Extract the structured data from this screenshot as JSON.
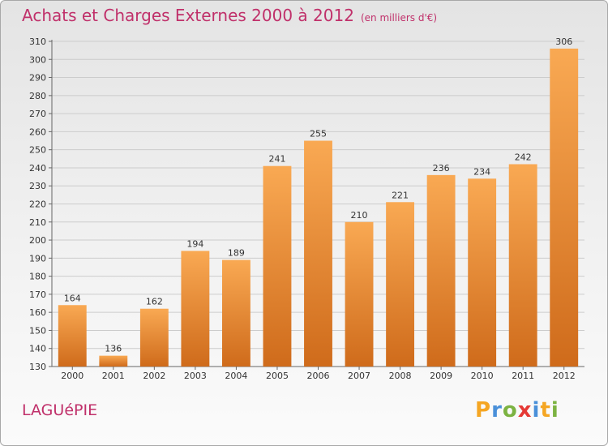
{
  "title": "Achats et Charges Externes 2000 à 2012",
  "subtitle": "(en milliers d'€)",
  "commune": "LAGUéPIE",
  "logo": {
    "letters": [
      "P",
      "r",
      "o",
      "x",
      "i",
      "t",
      "i"
    ],
    "colors": [
      "#f5a623",
      "#4a90d9",
      "#7cb342",
      "#e53935",
      "#4a90d9",
      "#f5a623",
      "#7cb342"
    ]
  },
  "colors": {
    "bar_top": "#f9a953",
    "bar_bottom": "#cf6b1b",
    "title": "#c0306a",
    "grid": "#cccccc"
  },
  "chart_data": {
    "type": "bar",
    "title": "Achats et Charges Externes 2000 à 2012",
    "categories": [
      "2000",
      "2001",
      "2002",
      "2003",
      "2004",
      "2005",
      "2006",
      "2007",
      "2008",
      "2009",
      "2010",
      "2011",
      "2012"
    ],
    "values": [
      164,
      136,
      162,
      194,
      189,
      241,
      255,
      210,
      221,
      236,
      234,
      242,
      306
    ],
    "ylim": [
      130,
      310
    ],
    "yticks": [
      130,
      140,
      150,
      160,
      170,
      180,
      190,
      200,
      210,
      220,
      230,
      240,
      250,
      260,
      270,
      280,
      290,
      300,
      310
    ],
    "grid": true,
    "data_labels": true
  }
}
